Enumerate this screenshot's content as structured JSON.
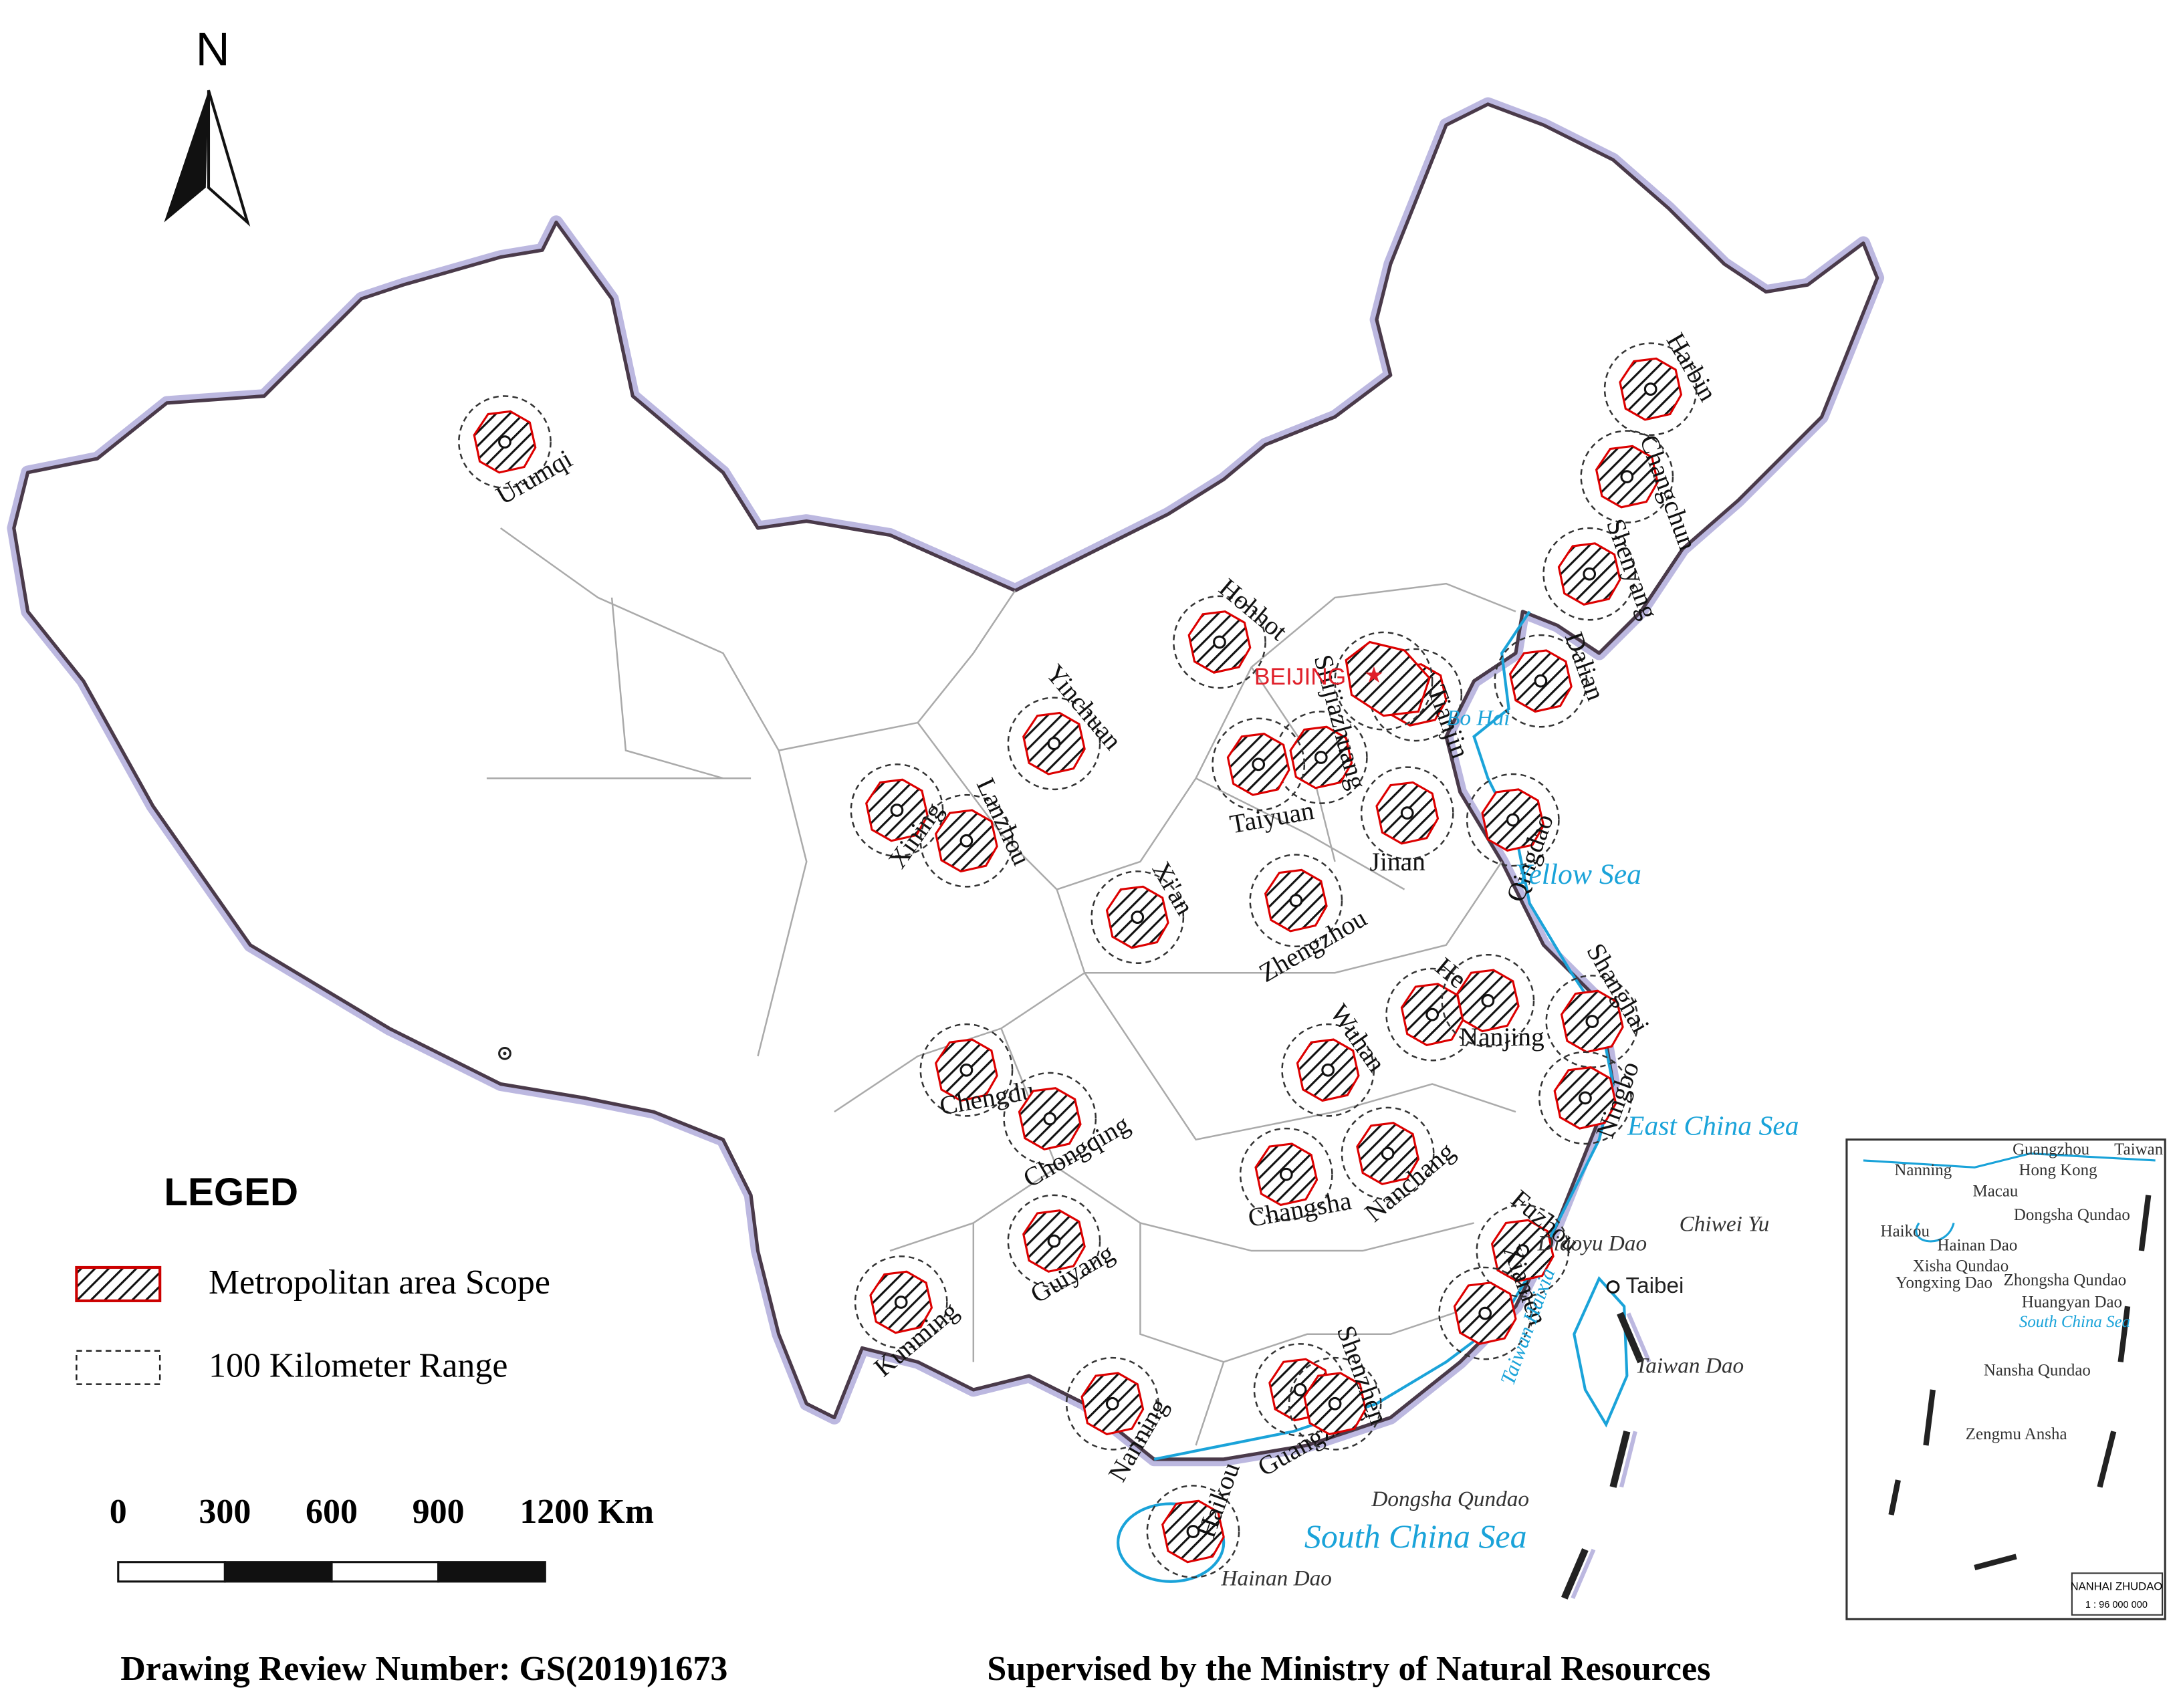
{
  "north": "N",
  "capital": "BEIJING",
  "cities": [
    "Urumqi",
    "Harbin",
    "Changchun",
    "Shenyang",
    "Dalian",
    "Hohhot",
    "Tianjin",
    "Shijiazhuang",
    "Taiyuan",
    "Jinan",
    "Qingdao",
    "Yinchuan",
    "Xining",
    "Lanzhou",
    "Xi'an",
    "Zhengzhou",
    "Hefei",
    "Nanjing",
    "Shanghai",
    "Ningbo",
    "Wuhan",
    "Chengdu",
    "Chongqing",
    "Changsha",
    "Nanchang",
    "Guiyang",
    "Kunming",
    "Fuzhou",
    "Xiamen",
    "Nanning",
    "Guangzhou",
    "Shenzhen",
    "Haikou"
  ],
  "seas": [
    "Bo Hai",
    "Yellow Sea",
    "East China Sea",
    "South China Sea",
    "Taiwan Haixia"
  ],
  "islands": [
    "Diaoyu Dao",
    "Chiwei Yu",
    "Taibei",
    "Taiwan Dao",
    "Dongsha Qundao",
    "Hainan Dao"
  ],
  "legend": {
    "title": "LEGED",
    "items": [
      "Metropolitan area Scope",
      "100 Kilometer Range"
    ]
  },
  "scale_bar": [
    "0",
    "300",
    "600",
    "900",
    "1200 Km"
  ],
  "inset": {
    "labels": [
      "Guangzhou",
      "Taiwan",
      "Nanning",
      "Hong Kong",
      "Macau",
      "Dongsha Qundao",
      "Haikou",
      "Hainan Dao",
      "Xisha Qundao",
      "Yongxing Dao",
      "Zhongsha Qundao",
      "Huangyan Dao",
      "South China Sea",
      "Nansha Qundao",
      "Zengmu Ansha"
    ],
    "title": "NANHAI ZHUDAO",
    "scale": "1 : 96 000 000"
  },
  "footer": {
    "review": "Drawing Review Number: GS(2019)1673",
    "supervised": "Supervised by the Ministry of Natural Resources"
  }
}
